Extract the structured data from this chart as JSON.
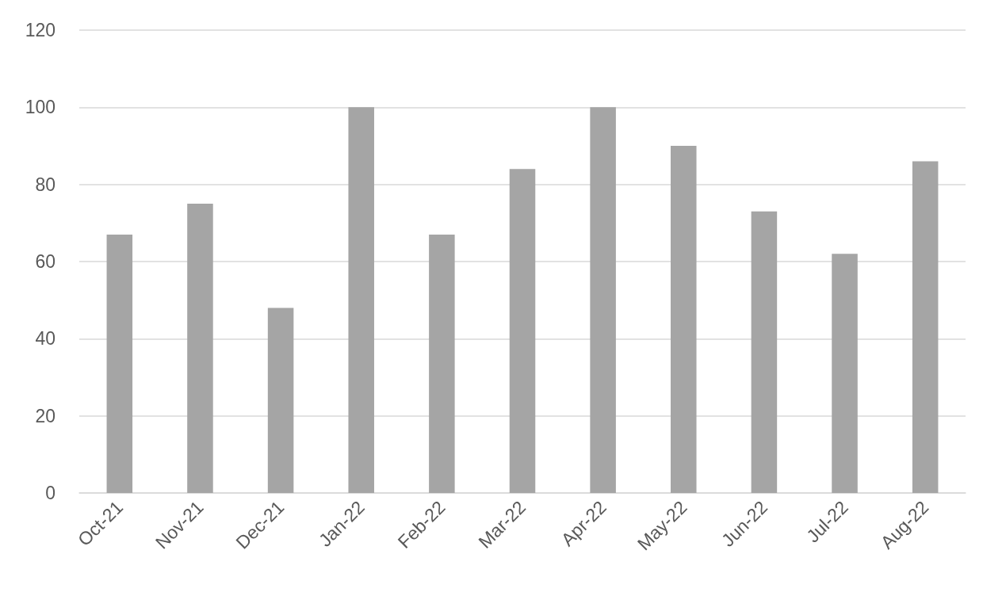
{
  "chart_data": {
    "type": "bar",
    "categories": [
      "Oct-21",
      "Nov-21",
      "Dec-21",
      "Jan-22",
      "Feb-22",
      "Mar-22",
      "Apr-22",
      "May-22",
      "Jun-22",
      "Jul-22",
      "Aug-22"
    ],
    "values": [
      67,
      75,
      48,
      100,
      67,
      84,
      100,
      90,
      73,
      62,
      86
    ],
    "color": "#a5a5a5",
    "ylim": [
      0,
      120
    ],
    "yticks": [
      0,
      20,
      40,
      60,
      80,
      100,
      120
    ],
    "grid": "y"
  }
}
